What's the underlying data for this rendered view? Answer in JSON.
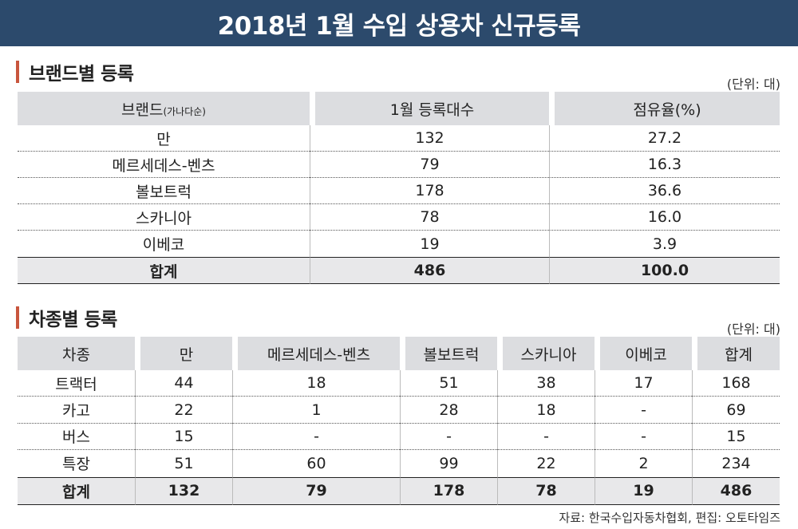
{
  "title": "2018년 1월 수입 상용차 신규등록",
  "brand_section": {
    "heading": "브랜드별 등록",
    "unit": "(단위: 대)",
    "headers": {
      "brand": "브랜드",
      "brand_note": "(가나다순)",
      "count": "1월 등록대수",
      "share": "점유율(%)"
    },
    "rows": [
      {
        "brand": "만",
        "count": "132",
        "share": "27.2"
      },
      {
        "brand": "메르세데스-벤츠",
        "count": "79",
        "share": "16.3"
      },
      {
        "brand": "볼보트럭",
        "count": "178",
        "share": "36.6"
      },
      {
        "brand": "스카니아",
        "count": "78",
        "share": "16.0"
      },
      {
        "brand": "이베코",
        "count": "19",
        "share": "3.9"
      }
    ],
    "total": {
      "brand": "합계",
      "count": "486",
      "share": "100.0"
    }
  },
  "type_section": {
    "heading": "차종별 등록",
    "unit": "(단위: 대)",
    "headers": [
      "차종",
      "만",
      "메르세데스-벤츠",
      "볼보트럭",
      "스카니아",
      "이베코",
      "합계"
    ],
    "rows": [
      [
        "트랙터",
        "44",
        "18",
        "51",
        "38",
        "17",
        "168"
      ],
      [
        "카고",
        "22",
        "1",
        "28",
        "18",
        "-",
        "69"
      ],
      [
        "버스",
        "15",
        "-",
        "-",
        "-",
        "-",
        "15"
      ],
      [
        "특장",
        "51",
        "60",
        "99",
        "22",
        "2",
        "234"
      ]
    ],
    "total": [
      "합계",
      "132",
      "79",
      "178",
      "78",
      "19",
      "486"
    ]
  },
  "source": "자료: 한국수입자동차협회,   편집: 오토타임즈"
}
